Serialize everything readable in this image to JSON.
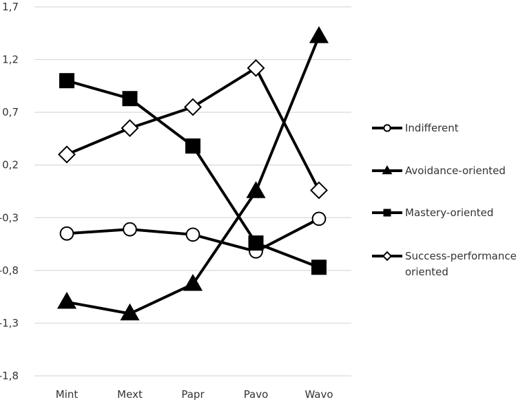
{
  "chart_data": {
    "type": "line",
    "categories": [
      "Mint",
      "Mext",
      "Papr",
      "Pavo",
      "Wavo"
    ],
    "y_ticks": [
      "1,7",
      "1,2",
      "0,7",
      "0,2",
      "-0,3",
      "-0,8",
      "-1,3",
      "-1,8"
    ],
    "ylim": [
      -1.8,
      1.7
    ],
    "grid": true,
    "legend_position": "right",
    "series": [
      {
        "name": "Indifferent",
        "marker": "circle-open",
        "values": [
          -0.45,
          -0.41,
          -0.46,
          -0.62,
          -0.31
        ]
      },
      {
        "name": "Avoidance-oriented",
        "marker": "triangle-filled",
        "values": [
          -1.1,
          -1.21,
          -0.93,
          -0.05,
          1.42
        ]
      },
      {
        "name": "Mastery-oriented",
        "marker": "square-filled",
        "values": [
          1.0,
          0.83,
          0.38,
          -0.54,
          -0.77
        ]
      },
      {
        "name": "Success-performance oriented",
        "name_lines": [
          "Success-performance",
          "oriented"
        ],
        "marker": "diamond-open",
        "values": [
          0.3,
          0.55,
          0.75,
          1.12,
          -0.04
        ]
      }
    ],
    "colors": {
      "line": "#000000",
      "grid": "#d9d9d9",
      "text": "#333333"
    }
  }
}
